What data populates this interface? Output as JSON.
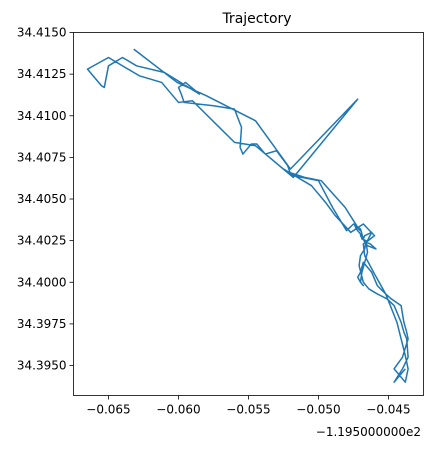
{
  "chart_data": {
    "type": "line",
    "title": "Trajectory",
    "xlabel": "",
    "ylabel": "",
    "x_offset_label": "−1.195000000e2",
    "xlim": [
      -0.0675,
      -0.0425
    ],
    "ylim": [
      34.3932,
      34.415
    ],
    "x_ticks": [
      -0.065,
      -0.06,
      -0.055,
      -0.05,
      -0.045
    ],
    "x_tick_labels": [
      "−0.065",
      "−0.060",
      "−0.055",
      "−0.050",
      "−0.045"
    ],
    "y_ticks": [
      34.395,
      34.3975,
      34.4,
      34.4025,
      34.405,
      34.4075,
      34.41,
      34.4125,
      34.415
    ],
    "y_tick_labels": [
      "34.3950",
      "34.3975",
      "34.4000",
      "34.4025",
      "34.4050",
      "34.4075",
      "34.4100",
      "34.4125",
      "34.4150"
    ],
    "grid": false,
    "series": [
      {
        "name": "",
        "color": "#1f77b4",
        "x": [
          -0.0632,
          -0.0601,
          -0.058,
          -0.0566,
          -0.0545,
          -0.052,
          -0.0472,
          -0.0515,
          -0.0518,
          -0.0545,
          -0.056,
          -0.059,
          -0.06,
          -0.0612,
          -0.0628,
          -0.065,
          -0.0665,
          -0.066,
          -0.0655,
          -0.0653,
          -0.065,
          -0.064,
          -0.063,
          -0.061,
          -0.0585,
          -0.0595,
          -0.06,
          -0.0598,
          -0.0596,
          -0.0575,
          -0.056,
          -0.0555,
          -0.0556,
          -0.0554,
          -0.0548,
          -0.0544,
          -0.0538,
          -0.053,
          -0.0522,
          -0.052,
          -0.0518,
          -0.05,
          -0.049,
          -0.048,
          -0.0475,
          -0.047,
          -0.0468,
          -0.0466,
          -0.0465,
          -0.0467,
          -0.0469,
          -0.047,
          -0.0468,
          -0.047,
          -0.0472,
          -0.047,
          -0.0468,
          -0.0462,
          -0.0458,
          -0.0452,
          -0.0448,
          -0.0441,
          -0.0439,
          -0.0437,
          -0.0436,
          -0.044,
          -0.0446,
          -0.0438,
          -0.0436,
          -0.0438,
          -0.0444,
          -0.0452,
          -0.046,
          -0.0467,
          -0.0468,
          -0.0465,
          -0.0462,
          -0.0467,
          -0.0468,
          -0.0466,
          -0.0463,
          -0.0459,
          -0.0465,
          -0.047,
          -0.0466,
          -0.046,
          -0.0468,
          -0.0477,
          -0.0488,
          -0.0495,
          -0.0505,
          -0.0525,
          -0.0521,
          -0.051,
          -0.0498,
          -0.0481,
          -0.0472,
          -0.047,
          -0.0474,
          -0.0473,
          -0.047,
          -0.0469,
          -0.0466,
          -0.0467,
          -0.047,
          -0.0471,
          -0.0468,
          -0.0464,
          -0.0458,
          -0.0451,
          -0.0446,
          -0.0441,
          -0.0439,
          -0.0437,
          -0.0436,
          -0.044,
          -0.0446,
          -0.0438
        ],
        "y": [
          34.414,
          34.412,
          34.4112,
          34.4106,
          34.4097,
          34.4068,
          34.411,
          34.4066,
          34.4063,
          34.4082,
          34.4084,
          34.4109,
          34.4108,
          34.412,
          34.4124,
          34.4135,
          34.4128,
          34.4123,
          34.4118,
          34.4117,
          34.413,
          34.4135,
          34.413,
          34.4126,
          34.4113,
          34.412,
          34.4117,
          34.4113,
          34.4108,
          34.4106,
          34.4104,
          34.4093,
          34.4081,
          34.4077,
          34.4083,
          34.4083,
          34.4077,
          34.4079,
          34.407,
          34.4065,
          34.4064,
          34.4061,
          34.4045,
          34.4031,
          34.4035,
          34.4032,
          34.4026,
          34.4024,
          34.4018,
          34.4012,
          34.4006,
          34.4,
          34.3998,
          34.4,
          34.4003,
          34.4006,
          34.4012,
          34.4006,
          34.3998,
          34.3993,
          34.399,
          34.3986,
          34.3976,
          34.397,
          34.3966,
          34.3955,
          34.3948,
          34.394,
          34.3948,
          34.3956,
          34.3976,
          34.3993,
          34.4005,
          34.4016,
          34.4023,
          34.4025,
          34.403,
          34.4028,
          34.4026,
          34.4024,
          34.4023,
          34.402,
          34.4022,
          34.4028,
          34.4024,
          34.4028,
          34.4035,
          34.403,
          34.404,
          34.4048,
          34.4058,
          34.4068,
          34.4066,
          34.4063,
          34.4061,
          34.4045,
          34.4033,
          34.4031,
          34.4034,
          34.4032,
          34.4029,
          34.4026,
          34.4025,
          34.402,
          34.4016,
          34.401,
          34.4,
          34.3996,
          34.3993,
          34.399,
          34.3986,
          34.3976,
          34.397,
          34.3966,
          34.3955,
          34.3948,
          34.394,
          34.3948
        ]
      }
    ]
  }
}
